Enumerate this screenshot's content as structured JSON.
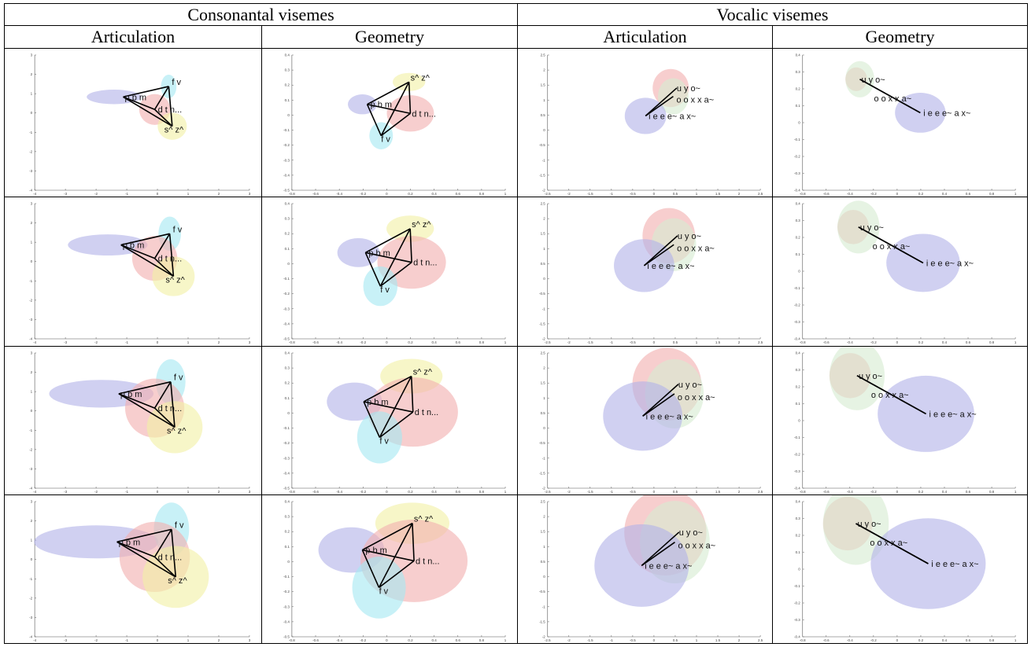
{
  "table": {
    "group_headers": [
      "Consonantal visemes",
      "Vocalic visemes"
    ],
    "column_headers": [
      "Articulation",
      "Geometry",
      "Articulation",
      "Geometry"
    ]
  },
  "colors": {
    "blue_ellipse": "#b3b3e8",
    "cyan_ellipse": "#a6e8f2",
    "red_ellipse": "#f2b0b0",
    "yellow_ellipse": "#f2f0a6",
    "green_ellipse": "#d6ecd2",
    "line": "#000000",
    "axis": "#555555"
  },
  "panels": {
    "cons_art": {
      "labels": [
        "p b m",
        "f v",
        "d t n...",
        "s^ z^"
      ],
      "x_ticks": [
        "-4",
        "-3",
        "-2",
        "-1",
        "0",
        "1",
        "2",
        "3"
      ],
      "y_ticks": [
        "3",
        "2",
        "1",
        "0",
        "-1",
        "-2",
        "-3",
        "-4"
      ]
    },
    "cons_geo": {
      "labels": [
        "p b m",
        "s^ z^",
        "d t n...",
        "f v"
      ],
      "x_ticks": [
        "-0.8",
        "-0.6",
        "-0.4",
        "-0.2",
        "0",
        "0.2",
        "0.4",
        "0.6",
        "0.8",
        "1"
      ],
      "y_ticks": [
        "0.4",
        "0.3",
        "0.2",
        "0.1",
        "0",
        "-0.1",
        "-0.2",
        "-0.3",
        "-0.4",
        "-0.5"
      ]
    },
    "voc_art": {
      "labels": [
        "u y o~",
        "o o x x a~",
        "i e e e~ a x~"
      ],
      "x_ticks": [
        "-2.5",
        "-2",
        "-1.5",
        "-1",
        "-0.5",
        "0",
        "0.5",
        "1",
        "1.5",
        "2",
        "2.5"
      ],
      "y_ticks": [
        "2.5",
        "2",
        "1.5",
        "1",
        "0.5",
        "0",
        "-0.5",
        "-1",
        "-1.5",
        "-2"
      ]
    },
    "voc_geo": {
      "labels": [
        "u y o~",
        "o o x x a~",
        "i e e e~ a x~"
      ],
      "x_ticks": [
        "-0.8",
        "-0.6",
        "-0.4",
        "-0.2",
        "0",
        "0.2",
        "0.4",
        "0.6",
        "0.8",
        "1"
      ],
      "y_ticks": [
        "0.4",
        "0.3",
        "0.2",
        "0.1",
        "0",
        "-0.1",
        "-0.2",
        "-0.3",
        "-0.4"
      ]
    }
  },
  "rows": [
    {
      "scale": 0.55
    },
    {
      "scale": 0.8
    },
    {
      "scale": 1.05
    },
    {
      "scale": 1.25
    }
  ]
}
